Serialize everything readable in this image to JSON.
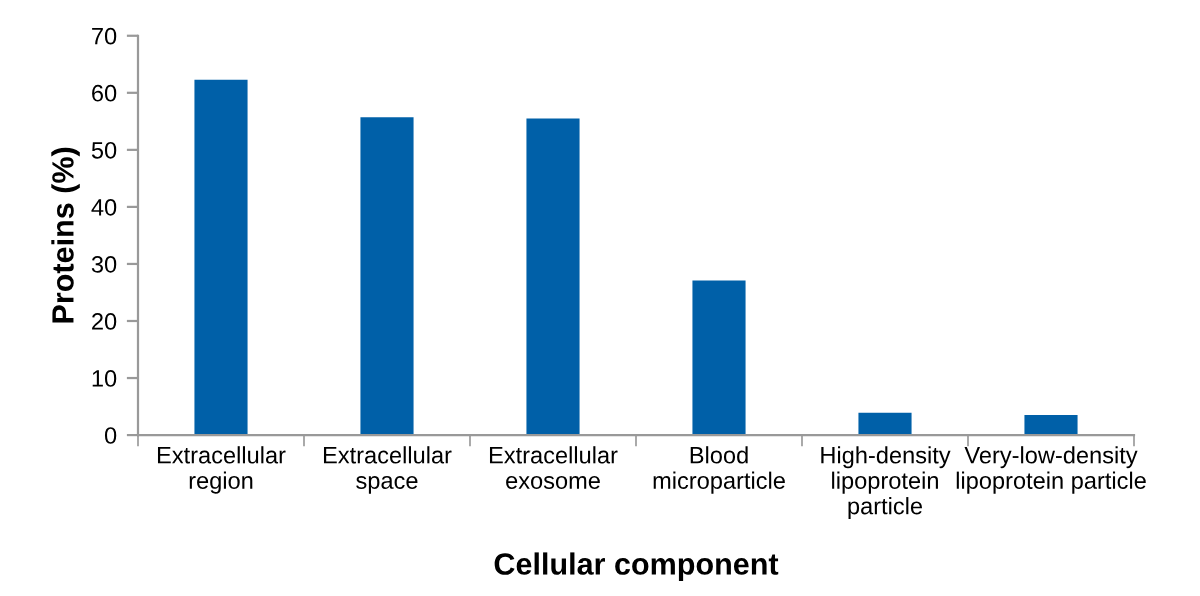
{
  "chart_data": {
    "type": "bar",
    "xlabel": "Cellular component",
    "ylabel": "Proteins (%)",
    "categories": [
      "Extracellular\nregion",
      "Extracellular\nspace",
      "Extracellular\nexosome",
      "Blood\nmicroparticle",
      "High-density\nlipoprotein\nparticle",
      "Very-low-density\nlipoprotein particle"
    ],
    "values": [
      62.3,
      55.7,
      55.5,
      27.1,
      3.9,
      3.5
    ],
    "color": "#0060a8",
    "ylim": [
      0,
      70
    ],
    "yticks": [
      0,
      10,
      20,
      30,
      40,
      50,
      60,
      70
    ],
    "grid": false,
    "legend": false
  }
}
